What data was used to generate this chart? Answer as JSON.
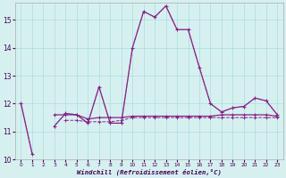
{
  "x": [
    0,
    1,
    2,
    3,
    4,
    5,
    6,
    7,
    8,
    9,
    10,
    11,
    12,
    13,
    14,
    15,
    16,
    17,
    18,
    19,
    20,
    21,
    22,
    23
  ],
  "line_main_y": [
    12.0,
    10.2,
    null,
    11.2,
    11.65,
    11.6,
    11.3,
    12.6,
    11.3,
    11.3,
    14.0,
    15.3,
    15.1,
    15.5,
    14.65,
    14.65,
    13.3,
    12.0,
    11.7,
    11.85,
    11.9,
    12.2,
    12.1,
    11.6
  ],
  "line_dot_y": [
    12.0,
    10.2,
    null,
    11.2,
    11.65,
    11.6,
    11.3,
    12.6,
    11.3,
    11.3,
    14.0,
    15.3,
    15.1,
    15.5,
    14.65,
    14.65,
    13.3,
    12.0,
    11.7,
    11.85,
    11.9,
    12.2,
    12.1,
    11.6
  ],
  "line_flat1_y": [
    null,
    null,
    null,
    11.6,
    11.6,
    11.6,
    11.45,
    11.5,
    11.5,
    11.5,
    11.55,
    11.55,
    11.55,
    11.55,
    11.55,
    11.55,
    11.55,
    11.55,
    11.6,
    11.6,
    11.6,
    11.6,
    11.6,
    11.55
  ],
  "line_flat2_y": [
    null,
    null,
    null,
    null,
    11.4,
    11.4,
    11.35,
    11.35,
    11.35,
    11.4,
    11.5,
    11.5,
    11.5,
    11.5,
    11.5,
    11.5,
    11.5,
    11.5,
    11.5,
    11.5,
    11.5,
    11.5,
    11.5,
    11.5
  ],
  "color": "#882288",
  "bg_color": "#d6f0f0",
  "grid_color": "#aadddd",
  "xlabel": "Windchill (Refroidissement éolien,°C)",
  "ylim_min": 10.0,
  "ylim_max": 15.6,
  "xlim_min": -0.5,
  "xlim_max": 23.5,
  "yticks": [
    10,
    11,
    12,
    13,
    14,
    15
  ],
  "xticks": [
    0,
    1,
    2,
    3,
    4,
    5,
    6,
    7,
    8,
    9,
    10,
    11,
    12,
    13,
    14,
    15,
    16,
    17,
    18,
    19,
    20,
    21,
    22,
    23
  ]
}
